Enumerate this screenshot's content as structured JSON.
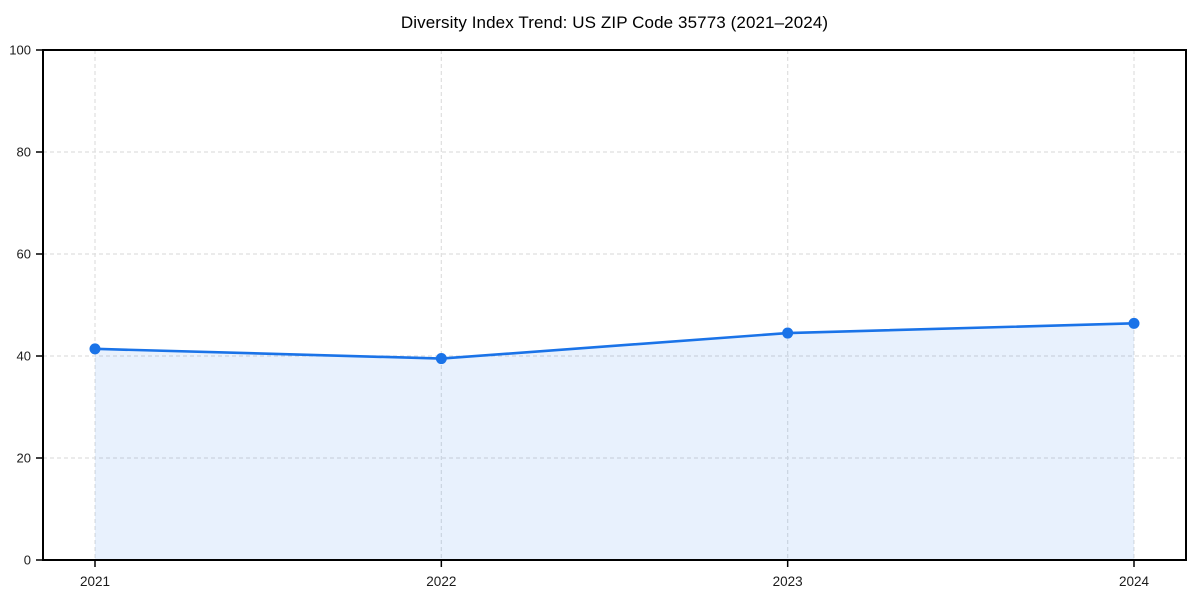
{
  "chart_data": {
    "type": "line",
    "title": "Diversity Index Trend: US ZIP Code 35773 (2021–2024)",
    "categories": [
      "2021",
      "2022",
      "2023",
      "2024"
    ],
    "values": [
      41.4,
      39.5,
      44.5,
      46.4
    ],
    "xlabel": "",
    "ylabel": "",
    "ylim": [
      0,
      100
    ],
    "yticks": [
      0,
      20,
      40,
      60,
      80,
      100
    ],
    "grid": true,
    "grid_style": "dashed",
    "area_fill": true,
    "marker": "circle",
    "legend": "none",
    "colors": {
      "line": "#1a73e8",
      "fill": "#1a73e8",
      "fill_opacity": 0.1,
      "grid": "#dfdfdf",
      "axis": "#000000",
      "tick_label": "#1c1c1c",
      "title": "#000000",
      "background": "#ffffff"
    }
  }
}
